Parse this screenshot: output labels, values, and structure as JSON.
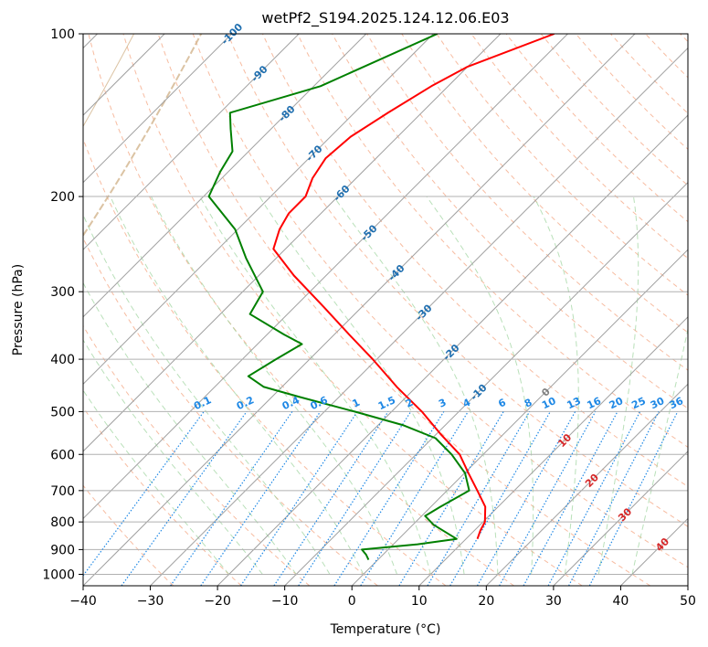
{
  "chart_data": {
    "type": "line",
    "diagram": "skew-T log-p",
    "title": "wetPf2_S194.2025.124.12.06.E03",
    "xlabel": "Temperature (°C)",
    "ylabel": "Pressure (hPa)",
    "xlim": [
      -40,
      50
    ],
    "ylim": [
      1050,
      100
    ],
    "y_scale": "log",
    "grid": true,
    "x_ticks": [
      -40,
      -30,
      -20,
      -10,
      0,
      10,
      20,
      30,
      40,
      50
    ],
    "y_ticks": [
      100,
      200,
      300,
      400,
      500,
      600,
      700,
      800,
      900,
      1000
    ],
    "isotherm_labels": [
      -100,
      -90,
      -80,
      -70,
      -60,
      -50,
      -40,
      -30,
      -20,
      -10,
      0,
      10,
      20,
      30,
      40
    ],
    "mixing_ratio_labels": [
      "0.1",
      "0.2",
      "0.4",
      "0.6",
      "1",
      "1.5",
      "2",
      "3",
      "4",
      "6",
      "8",
      "10",
      "13",
      "16",
      "20",
      "25",
      "30",
      "36"
    ],
    "series": [
      {
        "color": "#ff0000",
        "pressure": [
          100,
          115,
          125,
          140,
          155,
          170,
          185,
          200,
          215,
          230,
          250,
          280,
          320,
          360,
          400,
          450,
          500,
          550,
          600,
          650,
          700,
          750,
          800,
          830,
          860
        ],
        "values": [
          -52,
          -60,
          -62.5,
          -65,
          -67,
          -67.5,
          -66.5,
          -64.8,
          -64.8,
          -63.8,
          -61.8,
          -54.8,
          -45.7,
          -37.8,
          -30.6,
          -22.9,
          -15.5,
          -9.4,
          -3.5,
          0.6,
          4.5,
          8.1,
          10.3,
          10.9,
          11.7
        ]
      },
      {
        "color": "#008000",
        "pressure": [
          100,
          125,
          140,
          150,
          165,
          180,
          200,
          230,
          260,
          300,
          330,
          360,
          375,
          400,
          430,
          450,
          470,
          500,
          530,
          560,
          600,
          650,
          700,
          750,
          780,
          810,
          860,
          880,
          900,
          920,
          940
        ],
        "values": [
          -69.4,
          -79,
          -88.5,
          -86,
          -82.4,
          -81.2,
          -79.2,
          -70.4,
          -64.5,
          -57,
          -55.6,
          -47.5,
          -43.4,
          -45,
          -46.6,
          -42.7,
          -35.8,
          -25.5,
          -16.2,
          -9.5,
          -4.7,
          0.1,
          3.3,
          1.4,
          0.5,
          3.1,
          8.6,
          3.6,
          -3.9,
          -2.5,
          -1.4
        ]
      }
    ]
  }
}
